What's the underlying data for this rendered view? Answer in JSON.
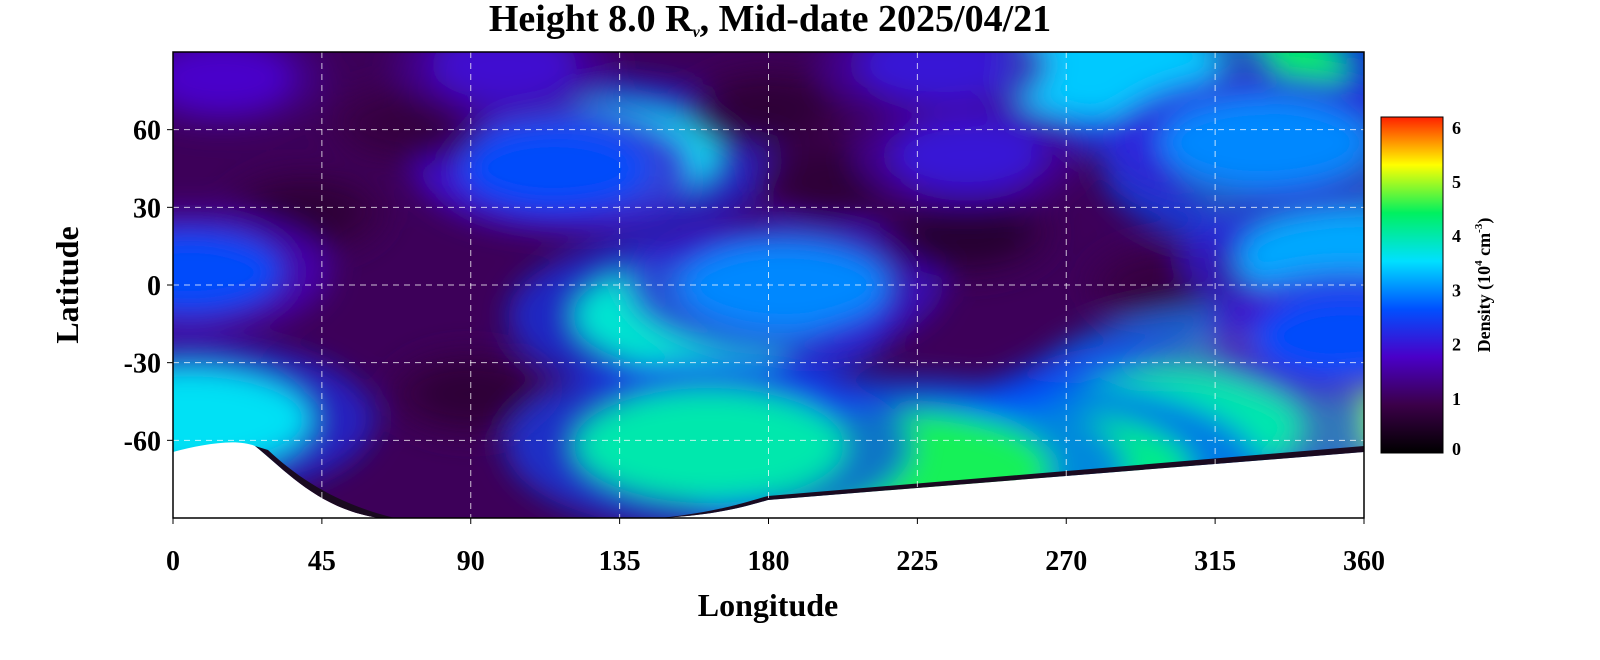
{
  "chart_data": {
    "type": "heatmap",
    "title": {
      "prefix": "Height 8.0 R",
      "subscript": "v",
      "suffix": ", Mid-date 2025/04/21"
    },
    "xlabel": "Longitude",
    "ylabel": "Latitude",
    "xlim": [
      0,
      360
    ],
    "ylim": [
      -90,
      90
    ],
    "x_ticks": [
      "0",
      "45",
      "90",
      "135",
      "180",
      "225",
      "270",
      "315",
      "360"
    ],
    "y_ticks": [
      "60",
      "30",
      "0",
      "-30",
      "-60"
    ],
    "grid": true,
    "colorbar": {
      "label_prefix": "Density (10",
      "label_exp1": "4",
      "label_mid": " cm",
      "label_exp2": "-3",
      "label_suffix": ")",
      "range": [
        0,
        6.2
      ],
      "ticks": [
        "0",
        "1",
        "2",
        "3",
        "4",
        "5",
        "6"
      ],
      "colors": [
        "#000000",
        "#3b0048",
        "#4a00c8",
        "#0050ff",
        "#00e0ff",
        "#00f060",
        "#ffff00",
        "#ff2000"
      ]
    },
    "background_level": 1.0,
    "features": [
      {
        "lon": 160,
        "lat": -12,
        "value": 3.8
      },
      {
        "lon": 185,
        "lat": 0,
        "value": 3.0
      },
      {
        "lon": 128,
        "lat": 50,
        "value": 3.6
      },
      {
        "lon": 115,
        "lat": 45,
        "value": 2.6
      },
      {
        "lon": 40,
        "lat": 28,
        "value": 0.7
      },
      {
        "lon": 90,
        "lat": -42,
        "value": 0.7
      },
      {
        "lon": 240,
        "lat": 20,
        "value": 0.6
      },
      {
        "lon": 200,
        "lat": 40,
        "value": 0.7
      },
      {
        "lon": 300,
        "lat": 0,
        "value": 0.8
      },
      {
        "lon": 335,
        "lat": 73,
        "value": 0.1
      },
      {
        "lon": 305,
        "lat": 88,
        "value": 0.3
      },
      {
        "lon": 180,
        "lat": 68,
        "value": 0.7
      },
      {
        "lon": 255,
        "lat": 65,
        "value": 0.7
      },
      {
        "lon": 70,
        "lat": 62,
        "value": 0.8
      },
      {
        "lon": 310,
        "lat": 82,
        "value": 4.4
      },
      {
        "lon": 280,
        "lat": 84,
        "value": 3.4
      },
      {
        "lon": 345,
        "lat": 45,
        "value": 4.2
      },
      {
        "lon": 330,
        "lat": 55,
        "value": 3.0
      },
      {
        "lon": 330,
        "lat": -45,
        "value": 4.9
      },
      {
        "lon": 300,
        "lat": -55,
        "value": 4.0
      },
      {
        "lon": 265,
        "lat": -72,
        "value": 4.2
      },
      {
        "lon": 220,
        "lat": -72,
        "value": 4.5
      },
      {
        "lon": 162,
        "lat": -62,
        "value": 4.0
      },
      {
        "lon": 5,
        "lat": -52,
        "value": 3.6
      },
      {
        "lon": 5,
        "lat": 5,
        "value": 2.6
      },
      {
        "lon": 355,
        "lat": 10,
        "value": 3.2
      },
      {
        "lon": 355,
        "lat": -20,
        "value": 2.6
      },
      {
        "lon": 15,
        "lat": 80,
        "value": 1.8
      },
      {
        "lon": 100,
        "lat": 85,
        "value": 1.9
      },
      {
        "lon": 230,
        "lat": 85,
        "value": 2.0
      },
      {
        "lon": 240,
        "lat": 50,
        "value": 2.0
      }
    ]
  }
}
